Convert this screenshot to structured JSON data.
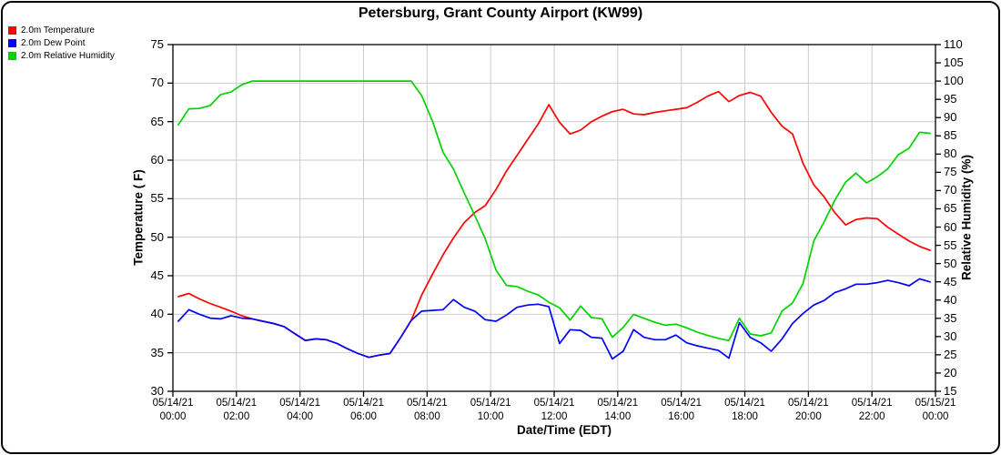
{
  "chart_data": {
    "type": "line",
    "title": "Petersburg, Grant County Airport (KW99)",
    "xlabel": "Date/Time (EDT)",
    "ylabel_left": "Temperature ( F)",
    "ylabel_right": "Relative Humidity (%)",
    "grid": true,
    "legend_position": "top-left",
    "y_left": {
      "min": 30,
      "max": 75,
      "step": 5
    },
    "y_right": {
      "min": 15,
      "max": 110,
      "step": 5
    },
    "x_ticks": [
      {
        "date": "05/14/21",
        "time": "00:00"
      },
      {
        "date": "05/14/21",
        "time": "02:00"
      },
      {
        "date": "05/14/21",
        "time": "04:00"
      },
      {
        "date": "05/14/21",
        "time": "06:00"
      },
      {
        "date": "05/14/21",
        "time": "08:00"
      },
      {
        "date": "05/14/21",
        "time": "10:00"
      },
      {
        "date": "05/14/21",
        "time": "12:00"
      },
      {
        "date": "05/14/21",
        "time": "14:00"
      },
      {
        "date": "05/14/21",
        "time": "16:00"
      },
      {
        "date": "05/14/21",
        "time": "18:00"
      },
      {
        "date": "05/14/21",
        "time": "20:00"
      },
      {
        "date": "05/14/21",
        "time": "22:00"
      },
      {
        "date": "05/15/21",
        "time": "00:00"
      }
    ],
    "x_hours": [
      0.17,
      0.5,
      0.83,
      1.17,
      1.5,
      1.83,
      2.17,
      2.5,
      2.83,
      3.17,
      3.5,
      3.83,
      4.17,
      4.5,
      4.83,
      5.17,
      5.5,
      5.83,
      6.17,
      6.5,
      6.83,
      7.17,
      7.5,
      7.83,
      8.17,
      8.5,
      8.83,
      9.17,
      9.5,
      9.83,
      10.17,
      10.5,
      10.83,
      11.17,
      11.5,
      11.83,
      12.17,
      12.5,
      12.83,
      13.17,
      13.5,
      13.83,
      14.17,
      14.5,
      14.83,
      15.17,
      15.5,
      15.83,
      16.17,
      16.5,
      16.83,
      17.17,
      17.5,
      17.83,
      18.17,
      18.5,
      18.83,
      19.17,
      19.5,
      19.83,
      20.17,
      20.5,
      20.83,
      21.17,
      21.5,
      21.83,
      22.17,
      22.5,
      22.83,
      23.17,
      23.5,
      23.83
    ],
    "series": [
      {
        "name": "2.0m Temperature",
        "color": "#ff0000",
        "axis": "left",
        "values": [
          42.3,
          42.7,
          42.0,
          41.4,
          40.9,
          40.4,
          39.8,
          39.4,
          39.1,
          38.8,
          38.4,
          37.5,
          36.6,
          36.8,
          36.7,
          36.2,
          35.5,
          34.9,
          34.4,
          34.7,
          34.9,
          37.0,
          39.2,
          42.5,
          45.2,
          47.7,
          49.9,
          51.9,
          53.2,
          54.1,
          56.2,
          58.6,
          60.6,
          62.7,
          64.7,
          67.2,
          64.9,
          63.4,
          63.9,
          65.0,
          65.7,
          66.3,
          66.6,
          66.0,
          65.9,
          66.2,
          66.4,
          66.6,
          66.8,
          67.5,
          68.3,
          68.9,
          67.6,
          68.4,
          68.8,
          68.3,
          66.2,
          64.4,
          63.4,
          59.6,
          56.8,
          55.2,
          53.2,
          51.6,
          52.3,
          52.5,
          52.4,
          51.3,
          50.4,
          49.5,
          48.8,
          48.3
        ]
      },
      {
        "name": "2.0m Dew Point",
        "color": "#0000ff",
        "axis": "left",
        "values": [
          39.1,
          40.6,
          40.0,
          39.5,
          39.4,
          39.8,
          39.5,
          39.4,
          39.1,
          38.8,
          38.4,
          37.5,
          36.6,
          36.8,
          36.7,
          36.2,
          35.5,
          34.9,
          34.4,
          34.7,
          34.9,
          37.0,
          39.2,
          40.4,
          40.5,
          40.6,
          41.9,
          40.9,
          40.4,
          39.3,
          39.1,
          39.9,
          40.9,
          41.2,
          41.3,
          41.0,
          36.2,
          38.0,
          37.9,
          37.0,
          36.9,
          34.2,
          35.2,
          38.0,
          37.0,
          36.7,
          36.7,
          37.3,
          36.3,
          35.9,
          35.6,
          35.3,
          34.3,
          38.9,
          37.0,
          36.3,
          35.2,
          36.8,
          38.8,
          40.1,
          41.2,
          41.8,
          42.8,
          43.3,
          43.9,
          43.9,
          44.1,
          44.4,
          44.1,
          43.7,
          44.6,
          44.2
        ]
      },
      {
        "name": "2.0m Relative Humidity",
        "color": "#00d400",
        "axis": "right",
        "values": [
          88.0,
          92.4,
          92.5,
          93.3,
          96.3,
          97.0,
          99.0,
          100,
          100,
          100,
          100,
          100,
          100,
          100,
          100,
          100,
          100,
          100,
          100,
          100,
          100,
          100,
          100,
          96.0,
          89.0,
          80.5,
          75.9,
          69.3,
          63.2,
          56.8,
          48.2,
          44.0,
          43.7,
          42.4,
          41.4,
          39.4,
          37.9,
          34.5,
          38.4,
          35.2,
          34.9,
          29.8,
          32.5,
          36.1,
          35.0,
          33.9,
          33.1,
          33.4,
          32.4,
          31.2,
          30.3,
          29.5,
          28.9,
          35.0,
          30.7,
          30.2,
          31.0,
          37.0,
          39.2,
          44.5,
          56.2,
          61.5,
          67.3,
          72.3,
          74.8,
          72.1,
          73.8,
          76.0,
          79.8,
          81.6,
          86.0,
          85.7
        ]
      }
    ]
  }
}
